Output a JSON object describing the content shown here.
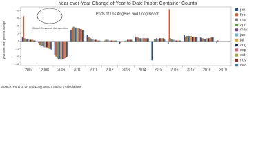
{
  "chart_data": {
    "type": "bar",
    "title": "Year-over-Year Change of Year-to-Date Import Container Counts",
    "subtitle": "Ports of Los Angeles and Long Beach",
    "logo_text": "Global Economic Intersection",
    "y_label": "year-over-year percent change",
    "source": "Source: Ports of LA and Long Beach, author's calculations",
    "categories": [
      "2007",
      "2008",
      "2009",
      "2010",
      "2011",
      "2012",
      "2013",
      "2014",
      "2015",
      "2016",
      "2017",
      "2018",
      "2019"
    ],
    "ylim": [
      -32,
      45
    ],
    "yticks": [
      -30,
      -20,
      -10,
      0,
      10,
      20,
      30,
      40
    ],
    "legend": "right",
    "series": [
      {
        "name": "jan",
        "color": "#1f4fa3",
        "values": [
          5,
          -2,
          -18,
          15,
          8,
          0,
          -4,
          5,
          -25,
          -3,
          8,
          5,
          -2
        ]
      },
      {
        "name": "feb",
        "color": "#e8521e",
        "values": [
          33,
          -5,
          -20,
          18,
          6,
          1,
          -2,
          6,
          0,
          42,
          6,
          4,
          1
        ]
      },
      {
        "name": "mar",
        "color": "#7f7f7f",
        "values": [
          4,
          -6,
          -22,
          19,
          5,
          2,
          -1,
          5,
          3,
          4,
          7,
          4,
          null
        ]
      },
      {
        "name": "apr",
        "color": "#5aa02c",
        "values": [
          3,
          -6,
          -23,
          19,
          4,
          2,
          0,
          4,
          3,
          3,
          7,
          3,
          null
        ]
      },
      {
        "name": "may",
        "color": "#7d3c98",
        "values": [
          3,
          -7,
          -24,
          18,
          3,
          2,
          0,
          4,
          4,
          2,
          7,
          3,
          null
        ]
      },
      {
        "name": "jun",
        "color": "#5dade2",
        "values": [
          3,
          -8,
          -24,
          18,
          3,
          1,
          1,
          4,
          3,
          2,
          7,
          4,
          null
        ]
      },
      {
        "name": "jul",
        "color": "#f39c12",
        "values": [
          2,
          -8,
          -24,
          17,
          2,
          1,
          1,
          4,
          3,
          1,
          7,
          4,
          null
        ]
      },
      {
        "name": "aug",
        "color": "#1b2a6b",
        "values": [
          2,
          -8,
          -23,
          17,
          2,
          1,
          2,
          4,
          4,
          1,
          6,
          4,
          null
        ]
      },
      {
        "name": "sep",
        "color": "#e74c6c",
        "values": [
          2,
          -9,
          -23,
          16,
          2,
          1,
          2,
          4,
          4,
          1,
          6,
          4,
          null
        ]
      },
      {
        "name": "oct",
        "color": "#9aa12a",
        "values": [
          2,
          -10,
          -22,
          16,
          1,
          1,
          2,
          4,
          4,
          1,
          6,
          5,
          null
        ]
      },
      {
        "name": "nov",
        "color": "#a0241c",
        "values": [
          1,
          -10,
          -21,
          15,
          1,
          1,
          2,
          4,
          4,
          1,
          6,
          5,
          null
        ]
      },
      {
        "name": "dec",
        "color": "#2e86c1",
        "values": [
          1,
          -11,
          -20,
          15,
          1,
          1,
          2,
          4,
          3,
          1,
          6,
          5,
          null
        ]
      }
    ]
  }
}
